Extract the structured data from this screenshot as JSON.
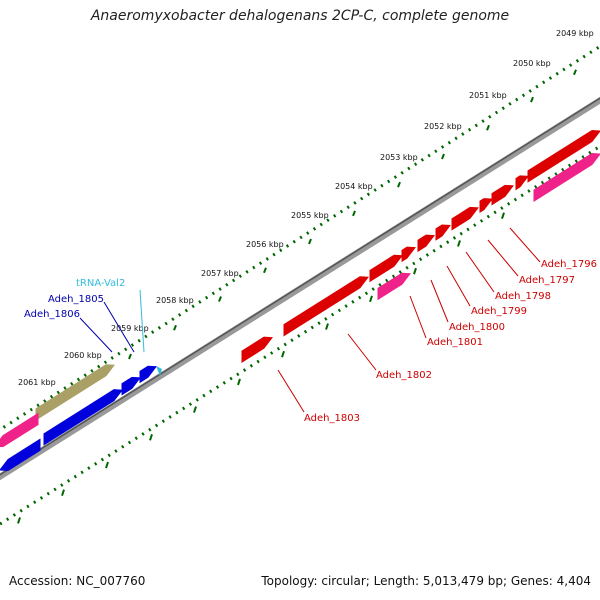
{
  "title": "Anaeromyxobacter dehalogenans 2CP-C, complete genome",
  "accession_text": "Accession: NC_007760",
  "summary_text": "Topology: circular; Length: 5,013,479 bp; Genes: 4,404",
  "colors": {
    "cds_forward": "#dd0000",
    "cds_forward_label": "#cc0000",
    "cds_reverse": "#0000dd",
    "cds_reverse_label": "#0000aa",
    "trna": "#33bbdd",
    "pseudo_pink": "#ee2288",
    "misc_olive": "#aaa066",
    "backbone": "#888888",
    "ruler_dots": "#006600"
  },
  "kbp_ticks": [
    "2049 kbp",
    "2050 kbp",
    "2051 kbp",
    "2052 kbp",
    "2053 kbp",
    "2054 kbp",
    "2055 kbp",
    "2056 kbp",
    "2057 kbp",
    "2058 kbp",
    "2059 kbp",
    "2060 kbp",
    "2061 kbp"
  ],
  "forward_labels": [
    "Adeh_1796",
    "Adeh_1797",
    "Adeh_1798",
    "Adeh_1799",
    "Adeh_1800",
    "Adeh_1801",
    "Adeh_1802",
    "Adeh_1803"
  ],
  "reverse_labels": [
    "tRNA-Val2",
    "Adeh_1805",
    "Adeh_1806"
  ]
}
